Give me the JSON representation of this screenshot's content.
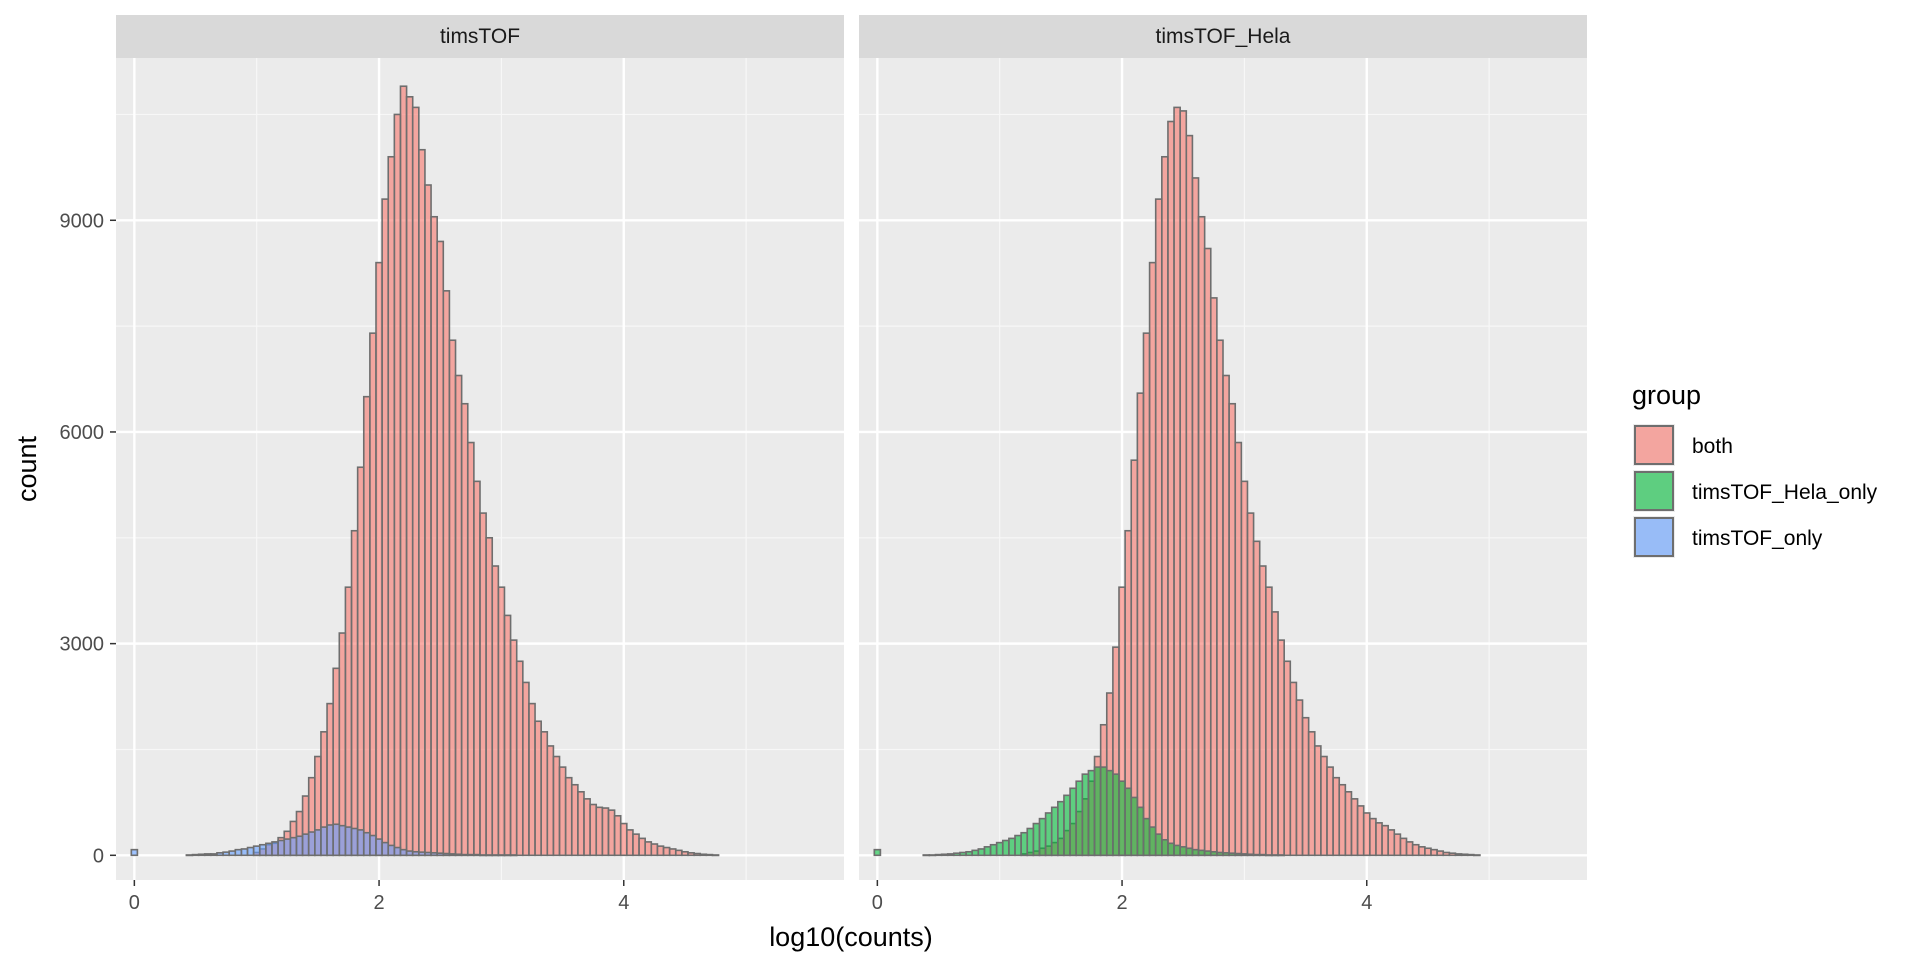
{
  "chart_data": {
    "type": "histogram",
    "facets": [
      "timsTOF",
      "timsTOF_Hela"
    ],
    "xlabel": "log10(counts)",
    "ylabel": "count",
    "xlim": [
      -0.15,
      5.8
    ],
    "ylim": [
      -350,
      11300
    ],
    "x_ticks": [
      0,
      2,
      4
    ],
    "y_ticks": [
      0,
      3000,
      6000,
      9000
    ],
    "grid": true,
    "bin_width": 0.05,
    "bins_x": [
      0.0,
      0.05,
      0.1,
      0.15,
      0.2,
      0.25,
      0.3,
      0.35,
      0.4,
      0.45,
      0.5,
      0.55,
      0.6,
      0.65,
      0.7,
      0.75,
      0.8,
      0.85,
      0.9,
      0.95,
      1.0,
      1.05,
      1.1,
      1.15,
      1.2,
      1.25,
      1.3,
      1.35,
      1.4,
      1.45,
      1.5,
      1.55,
      1.6,
      1.65,
      1.7,
      1.75,
      1.8,
      1.85,
      1.9,
      1.95,
      2.0,
      2.05,
      2.1,
      2.15,
      2.2,
      2.25,
      2.3,
      2.35,
      2.4,
      2.45,
      2.5,
      2.55,
      2.6,
      2.65,
      2.7,
      2.75,
      2.8,
      2.85,
      2.9,
      2.95,
      3.0,
      3.05,
      3.1,
      3.15,
      3.2,
      3.25,
      3.3,
      3.35,
      3.4,
      3.45,
      3.5,
      3.55,
      3.6,
      3.65,
      3.7,
      3.75,
      3.8,
      3.85,
      3.9,
      3.95,
      4.0,
      4.05,
      4.1,
      4.15,
      4.2,
      4.25,
      4.3,
      4.35,
      4.4,
      4.45,
      4.5,
      4.55,
      4.6,
      4.65,
      4.7,
      4.75,
      4.8,
      4.85,
      4.9,
      4.95,
      5.0,
      5.05,
      5.1,
      5.15,
      5.2,
      5.25,
      5.3
    ],
    "legend": {
      "title": "group",
      "position": "right",
      "entries": [
        {
          "name": "both",
          "color": "#F8766D"
        },
        {
          "name": "timsTOF_Hela_only",
          "color": "#00BA38"
        },
        {
          "name": "timsTOF_only",
          "color": "#619CFF"
        }
      ]
    },
    "panels": [
      {
        "facet": "timsTOF",
        "series": [
          {
            "name": "both",
            "color": "#F8766D",
            "values": [
              0,
              0,
              0,
              0,
              0,
              0,
              0,
              0,
              0,
              0,
              0,
              0,
              0,
              0,
              0,
              0,
              0,
              0,
              0,
              0,
              40,
              90,
              150,
              170,
              250,
              340,
              480,
              620,
              840,
              1100,
              1400,
              1750,
              2150,
              2650,
              3150,
              3800,
              4600,
              5500,
              6500,
              7400,
              8400,
              9300,
              9900,
              10500,
              10900,
              10750,
              10600,
              10000,
              9500,
              9050,
              8700,
              8000,
              7300,
              6800,
              6400,
              5850,
              5300,
              4850,
              4500,
              4100,
              3800,
              3400,
              3050,
              2750,
              2450,
              2150,
              1900,
              1750,
              1550,
              1400,
              1250,
              1100,
              1000,
              900,
              800,
              720,
              680,
              670,
              640,
              560,
              450,
              360,
              300,
              240,
              190,
              160,
              130,
              110,
              90,
              70,
              50,
              35,
              25,
              15,
              10,
              5,
              0,
              0,
              0,
              0,
              0,
              0,
              0,
              0,
              0,
              0,
              0
            ]
          },
          {
            "name": "timsTOF_only",
            "color": "#619CFF",
            "values": [
              80,
              0,
              0,
              0,
              0,
              0,
              0,
              0,
              0,
              5,
              10,
              15,
              20,
              20,
              35,
              45,
              60,
              80,
              90,
              110,
              130,
              150,
              170,
              190,
              210,
              230,
              250,
              270,
              300,
              330,
              360,
              400,
              430,
              440,
              420,
              400,
              380,
              360,
              320,
              280,
              230,
              180,
              140,
              110,
              80,
              60,
              50,
              45,
              40,
              35,
              30,
              25,
              20,
              15,
              10,
              10,
              10,
              5,
              5,
              5,
              5,
              5,
              5,
              0,
              0,
              0,
              0,
              0,
              0,
              0,
              0,
              0,
              0,
              0,
              0,
              0,
              0,
              0,
              0,
              0,
              0,
              0,
              0,
              0,
              0,
              0,
              0,
              0,
              0,
              0,
              0,
              0,
              0,
              0,
              0,
              0,
              0,
              0,
              0,
              0,
              0,
              0,
              0,
              0,
              0,
              0,
              0
            ]
          }
        ]
      },
      {
        "facet": "timsTOF_Hela",
        "series": [
          {
            "name": "both",
            "color": "#F8766D",
            "values": [
              0,
              0,
              0,
              0,
              0,
              0,
              0,
              0,
              0,
              0,
              0,
              0,
              0,
              0,
              0,
              0,
              0,
              0,
              0,
              0,
              0,
              0,
              0,
              0,
              20,
              40,
              60,
              100,
              130,
              180,
              240,
              350,
              450,
              620,
              800,
              1050,
              1400,
              1850,
              2300,
              2950,
              3800,
              4600,
              5600,
              6550,
              7400,
              8400,
              9300,
              9900,
              10400,
              10600,
              10550,
              10200,
              9600,
              9050,
              8600,
              7900,
              7300,
              6800,
              6400,
              5850,
              5300,
              4850,
              4450,
              4100,
              3800,
              3450,
              3050,
              2750,
              2450,
              2200,
              1950,
              1750,
              1550,
              1400,
              1250,
              1100,
              1000,
              900,
              800,
              700,
              600,
              520,
              460,
              420,
              360,
              300,
              240,
              190,
              150,
              120,
              100,
              80,
              60,
              40,
              30,
              20,
              15,
              10,
              5,
              0,
              0,
              0,
              0,
              0,
              0,
              0,
              0
            ]
          },
          {
            "name": "timsTOF_Hela_only",
            "color": "#00BA38",
            "values": [
              80,
              0,
              0,
              0,
              0,
              0,
              0,
              0,
              5,
              5,
              10,
              15,
              20,
              30,
              40,
              50,
              70,
              90,
              120,
              150,
              180,
              210,
              240,
              280,
              320,
              380,
              450,
              520,
              600,
              680,
              760,
              850,
              950,
              1050,
              1150,
              1200,
              1250,
              1250,
              1200,
              1150,
              1050,
              950,
              820,
              680,
              520,
              400,
              300,
              220,
              170,
              140,
              120,
              100,
              80,
              70,
              60,
              50,
              40,
              35,
              30,
              25,
              20,
              15,
              10,
              10,
              5,
              5,
              5,
              0,
              0,
              0,
              0,
              0,
              0,
              0,
              0,
              0,
              0,
              0,
              0,
              0,
              0,
              0,
              0,
              0,
              0,
              0,
              0,
              0,
              0,
              0,
              0,
              0,
              0,
              0,
              0,
              0,
              0,
              0,
              0,
              0,
              0,
              0,
              0,
              0,
              0,
              0,
              0
            ]
          }
        ]
      }
    ]
  }
}
